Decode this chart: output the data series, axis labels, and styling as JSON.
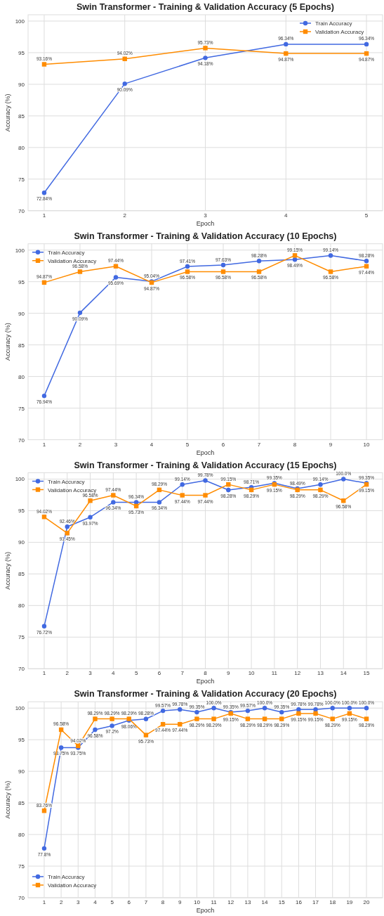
{
  "chart_data": [
    {
      "type": "line",
      "title": "Swin Transformer - Training & Validation Accuracy (5 Epochs)",
      "xlabel": "Epoch",
      "ylabel": "Accuracy (%)",
      "x": [
        1,
        2,
        3,
        4,
        5
      ],
      "xlim": [
        0.8,
        5.2
      ],
      "xticks": [
        1,
        2,
        3,
        4,
        5
      ],
      "ylim": [
        70,
        101
      ],
      "yticks": [
        70,
        75,
        80,
        85,
        90,
        95,
        100
      ],
      "grid": true,
      "legend": "top right",
      "series": [
        {
          "name": "Train Accuracy",
          "color": "#4169e1",
          "marker": "circle",
          "values": [
            72.84,
            90.09,
            94.18,
            96.34,
            96.34
          ],
          "value_labels": [
            "72.84%",
            "90.09%",
            "94.18%",
            "96.34%",
            "96.34%"
          ]
        },
        {
          "name": "Validation Accuracy",
          "color": "#ff8c00",
          "marker": "square",
          "values": [
            93.16,
            94.02,
            95.73,
            94.87,
            94.87
          ],
          "value_labels": [
            "93.16%",
            "94.02%",
            "95.73%",
            "94.87%",
            "94.87%"
          ]
        }
      ]
    },
    {
      "type": "line",
      "title": "Swin Transformer - Training & Validation Accuracy (10 Epochs)",
      "xlabel": "Epoch",
      "ylabel": "Accuracy (%)",
      "x": [
        1,
        2,
        3,
        4,
        5,
        6,
        7,
        8,
        9,
        10
      ],
      "xlim": [
        0.55,
        10.45
      ],
      "xticks": [
        1,
        2,
        3,
        4,
        5,
        6,
        7,
        8,
        9,
        10
      ],
      "ylim": [
        70,
        101
      ],
      "yticks": [
        70,
        75,
        80,
        85,
        90,
        95,
        100
      ],
      "grid": true,
      "legend": "top left",
      "series": [
        {
          "name": "Train Accuracy",
          "color": "#4169e1",
          "marker": "circle",
          "values": [
            76.94,
            90.09,
            95.69,
            95.04,
            97.41,
            97.63,
            98.28,
            98.49,
            99.14,
            98.28
          ],
          "value_labels": [
            "76.94%",
            "90.09%",
            "95.69%",
            "95.04%",
            "97.41%",
            "97.63%",
            "98.28%",
            "98.49%",
            "99.14%",
            "98.28%"
          ]
        },
        {
          "name": "Validation Accuracy",
          "color": "#ff8c00",
          "marker": "square",
          "values": [
            94.87,
            96.58,
            97.44,
            94.87,
            96.58,
            96.58,
            96.58,
            99.15,
            96.58,
            97.44
          ],
          "value_labels": [
            "94.87%",
            "96.58%",
            "97.44%",
            "94.87%",
            "96.58%",
            "96.58%",
            "96.58%",
            "99.15%",
            "96.58%",
            "97.44%"
          ]
        }
      ]
    },
    {
      "type": "line",
      "title": "Swin Transformer - Training & Validation Accuracy (15 Epochs)",
      "xlabel": "Epoch",
      "ylabel": "Accuracy (%)",
      "x": [
        1,
        2,
        3,
        4,
        5,
        6,
        7,
        8,
        9,
        10,
        11,
        12,
        13,
        14,
        15
      ],
      "xlim": [
        0.3,
        15.7
      ],
      "xticks": [
        1,
        2,
        3,
        4,
        5,
        6,
        7,
        8,
        9,
        10,
        11,
        12,
        13,
        14,
        15
      ],
      "ylim": [
        70,
        101
      ],
      "yticks": [
        70,
        75,
        80,
        85,
        90,
        95,
        100
      ],
      "grid": true,
      "legend": "top left",
      "series": [
        {
          "name": "Train Accuracy",
          "color": "#4169e1",
          "marker": "circle",
          "values": [
            76.72,
            92.46,
            93.97,
            96.34,
            96.34,
            96.34,
            99.14,
            99.78,
            98.28,
            98.71,
            99.35,
            98.49,
            99.14,
            100.0,
            99.35
          ],
          "value_labels": [
            "76.72%",
            "92.46%",
            "93.97%",
            "96.34%",
            "96.34%",
            "96.34%",
            "99.14%",
            "99.78%",
            "98.28%",
            "98.71%",
            "99.35%",
            "98.49%",
            "99.14%",
            "100.0%",
            "99.35%"
          ]
        },
        {
          "name": "Validation Accuracy",
          "color": "#ff8c00",
          "marker": "square",
          "values": [
            94.02,
            91.45,
            96.58,
            97.44,
            95.73,
            98.29,
            97.44,
            97.44,
            99.15,
            98.29,
            99.15,
            98.29,
            98.29,
            96.58,
            99.15
          ],
          "value_labels": [
            "94.02%",
            "91.45%",
            "96.58%",
            "97.44%",
            "95.73%",
            "98.29%",
            "97.44%",
            "97.44%",
            "99.15%",
            "98.29%",
            "99.15%",
            "98.29%",
            "98.29%",
            "96.58%",
            "99.15%"
          ]
        }
      ]
    },
    {
      "type": "line",
      "title": "Swin Transformer - Training & Validation Accuracy (20 Epochs)",
      "xlabel": "Epoch",
      "ylabel": "Accuracy (%)",
      "x": [
        1,
        2,
        3,
        4,
        5,
        6,
        7,
        8,
        9,
        10,
        11,
        12,
        13,
        14,
        15,
        16,
        17,
        18,
        19,
        20
      ],
      "xlim": [
        0.05,
        20.95
      ],
      "xticks": [
        1,
        2,
        3,
        4,
        5,
        6,
        7,
        8,
        9,
        10,
        11,
        12,
        13,
        14,
        15,
        16,
        17,
        18,
        19,
        20
      ],
      "ylim": [
        70,
        101
      ],
      "yticks": [
        70,
        75,
        80,
        85,
        90,
        95,
        100
      ],
      "grid": true,
      "legend": "bottom left",
      "series": [
        {
          "name": "Train Accuracy",
          "color": "#4169e1",
          "marker": "circle",
          "values": [
            77.8,
            93.75,
            93.75,
            96.58,
            97.2,
            98.06,
            98.28,
            99.57,
            99.78,
            99.35,
            100.0,
            99.35,
            99.57,
            100.0,
            99.35,
            99.78,
            99.78,
            100.0,
            100.0,
            100.0
          ],
          "value_labels": [
            "77.8%",
            "93.75%",
            "93.75%",
            "96.58%",
            "97.2%",
            "98.06%",
            "98.28%",
            "99.57%",
            "99.78%",
            "99.35%",
            "100.0%",
            "99.35%",
            "99.57%",
            "100.0%",
            "99.35%",
            "99.78%",
            "99.78%",
            "100.0%",
            "100.0%",
            "100.0%"
          ]
        },
        {
          "name": "Validation Accuracy",
          "color": "#ff8c00",
          "marker": "square",
          "values": [
            83.76,
            96.58,
            94.02,
            98.29,
            98.29,
            98.29,
            95.73,
            97.44,
            97.44,
            98.29,
            98.29,
            99.15,
            98.29,
            98.29,
            98.29,
            99.15,
            99.15,
            98.29,
            99.15,
            98.29
          ],
          "value_labels": [
            "83.76%",
            "96.58%",
            "94.02%",
            "98.29%",
            "98.29%",
            "98.29%",
            "95.73%",
            "97.44%",
            "97.44%",
            "98.29%",
            "98.29%",
            "99.15%",
            "98.29%",
            "98.29%",
            "98.29%",
            "99.15%",
            "99.15%",
            "98.29%",
            "99.15%",
            "98.29%"
          ]
        }
      ]
    }
  ]
}
